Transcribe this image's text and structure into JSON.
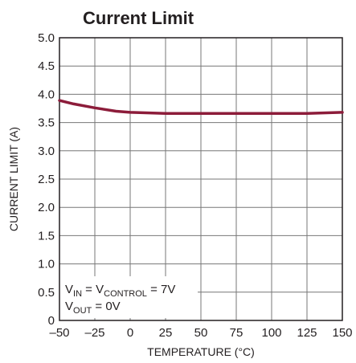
{
  "colors": {
    "series": "#8c1c3a",
    "grid": "#777777",
    "frame": "#231f20",
    "text": "#231f20"
  },
  "chart_data": {
    "type": "line",
    "title": "Current Limit",
    "xlabel": "TEMPERATURE (°C)",
    "ylabel": "CURRENT LIMIT (A)",
    "xlim": [
      -50,
      150
    ],
    "ylim": [
      0,
      5
    ],
    "grid": true,
    "x_ticks": [
      "–50",
      "–25",
      "0",
      "25",
      "50",
      "75",
      "100",
      "125",
      "150"
    ],
    "y_ticks": [
      "0",
      "0.5",
      "1.0",
      "1.5",
      "2.0",
      "2.5",
      "3.0",
      "3.5",
      "4.0",
      "4.5",
      "5.0"
    ],
    "annotation": {
      "line1": {
        "a": "V",
        "a_sub": "IN",
        "b": " = V",
        "b_sub": "CONTROL",
        "c": " = 7V"
      },
      "line2": {
        "a": "V",
        "a_sub": "OUT",
        "b": " = 0V"
      }
    },
    "series": [
      {
        "x": [
          -50,
          -40,
          -25,
          -10,
          0,
          25,
          50,
          75,
          100,
          125,
          150
        ],
        "values": [
          3.89,
          3.83,
          3.76,
          3.7,
          3.68,
          3.66,
          3.66,
          3.66,
          3.66,
          3.66,
          3.68
        ]
      }
    ]
  }
}
